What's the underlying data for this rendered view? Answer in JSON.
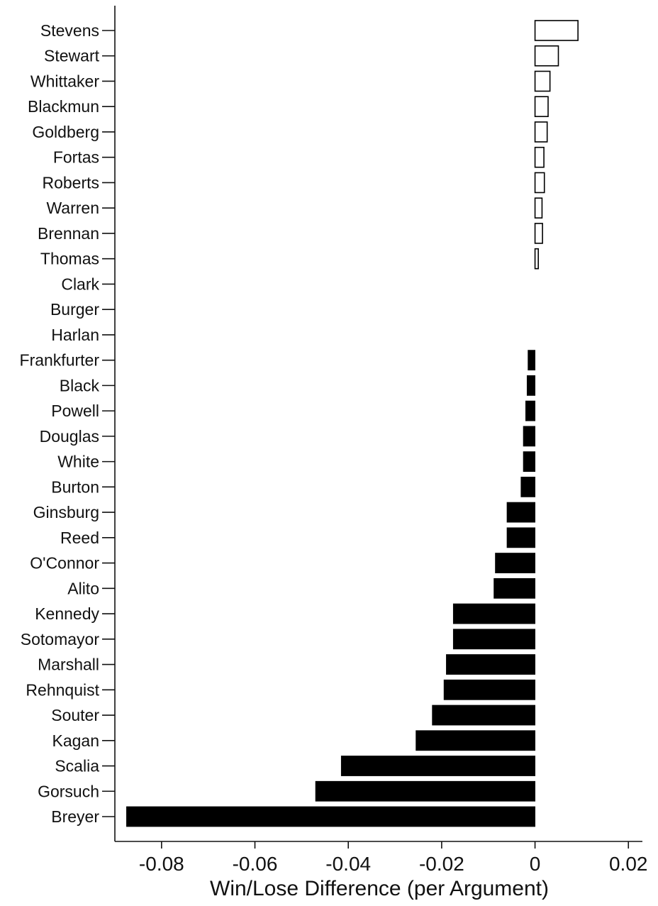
{
  "chart_data": {
    "type": "bar",
    "orientation": "horizontal",
    "xlabel": "Win/Lose Difference (per Argument)",
    "xlim": [
      -0.09,
      0.023
    ],
    "xticks": [
      -0.08,
      -0.06,
      -0.04,
      -0.02,
      0,
      0.02
    ],
    "xtick_labels": [
      "-0.08",
      "-0.06",
      "-0.04",
      "-0.02",
      "0",
      "0.02"
    ],
    "grid": false,
    "legend": "none",
    "positive_fill": "#ffffff",
    "negative_fill": "#000000",
    "categories": [
      "Stevens",
      "Stewart",
      "Whittaker",
      "Blackmun",
      "Goldberg",
      "Fortas",
      "Roberts",
      "Warren",
      "Brennan",
      "Thomas",
      "Clark",
      "Burger",
      "Harlan",
      "Frankfurter",
      "Black",
      "Powell",
      "Douglas",
      "White",
      "Burton",
      "Ginsburg",
      "Reed",
      "O'Connor",
      "Alito",
      "Kennedy",
      "Sotomayor",
      "Marshall",
      "Rehnquist",
      "Souter",
      "Kagan",
      "Scalia",
      "Gorsuch",
      "Breyer"
    ],
    "values": [
      0.0092,
      0.005,
      0.0032,
      0.0028,
      0.0026,
      0.0019,
      0.002,
      0.0015,
      0.0016,
      0.0007,
      0,
      0,
      0,
      -0.0015,
      -0.0017,
      -0.002,
      -0.0025,
      -0.0025,
      -0.003,
      -0.006,
      -0.006,
      -0.0085,
      -0.0088,
      -0.0175,
      -0.0175,
      -0.019,
      -0.0195,
      -0.022,
      -0.0255,
      -0.0415,
      -0.047,
      -0.0875
    ]
  }
}
